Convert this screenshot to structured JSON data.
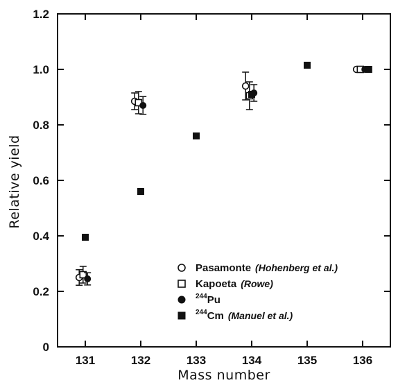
{
  "chart_data": {
    "type": "scatter",
    "xlabel": "Mass number",
    "ylabel": "Relative yield",
    "xlim": [
      130.5,
      136.5
    ],
    "ylim": [
      0,
      1.2
    ],
    "xticks": [
      "131",
      "132",
      "133",
      "134",
      "135",
      "136"
    ],
    "yticks": [
      "0",
      "0.2",
      "0.4",
      "0.6",
      "0.8",
      "1.0",
      "1.2"
    ],
    "legend_position": "bottom-right",
    "series": [
      {
        "name": "Pasamonte",
        "ref": "(Hohenberg et al.)",
        "marker": "open-circle",
        "points": [
          {
            "x": 131,
            "y": 0.25,
            "err": 0.028
          },
          {
            "x": 132,
            "y": 0.885,
            "err": 0.03
          },
          {
            "x": 134,
            "y": 0.94,
            "err": 0.05
          },
          {
            "x": 136,
            "y": 1.0
          }
        ]
      },
      {
        "name": "Kapoeta",
        "ref": "(Rowe)",
        "marker": "open-square",
        "points": [
          {
            "x": 131,
            "y": 0.26,
            "err": 0.03
          },
          {
            "x": 132,
            "y": 0.88,
            "err": 0.04
          },
          {
            "x": 134,
            "y": 0.905,
            "err": 0.05
          },
          {
            "x": 136,
            "y": 1.0
          }
        ]
      },
      {
        "name_sup": "244",
        "name": "Pu",
        "ref": "",
        "marker": "filled-circle",
        "points": [
          {
            "x": 131,
            "y": 0.245,
            "err": 0.022
          },
          {
            "x": 132,
            "y": 0.87,
            "err": 0.032
          },
          {
            "x": 134,
            "y": 0.915,
            "err": 0.03
          },
          {
            "x": 136,
            "y": 1.0
          }
        ]
      },
      {
        "name_sup": "244",
        "name": "Cm",
        "ref": "(Manuel et al.)",
        "marker": "filled-square",
        "points": [
          {
            "x": 131,
            "y": 0.395
          },
          {
            "x": 132,
            "y": 0.56
          },
          {
            "x": 133,
            "y": 0.76
          },
          {
            "x": 134,
            "y": 0.91
          },
          {
            "x": 135,
            "y": 1.015
          },
          {
            "x": 136,
            "y": 1.0
          }
        ]
      }
    ]
  }
}
